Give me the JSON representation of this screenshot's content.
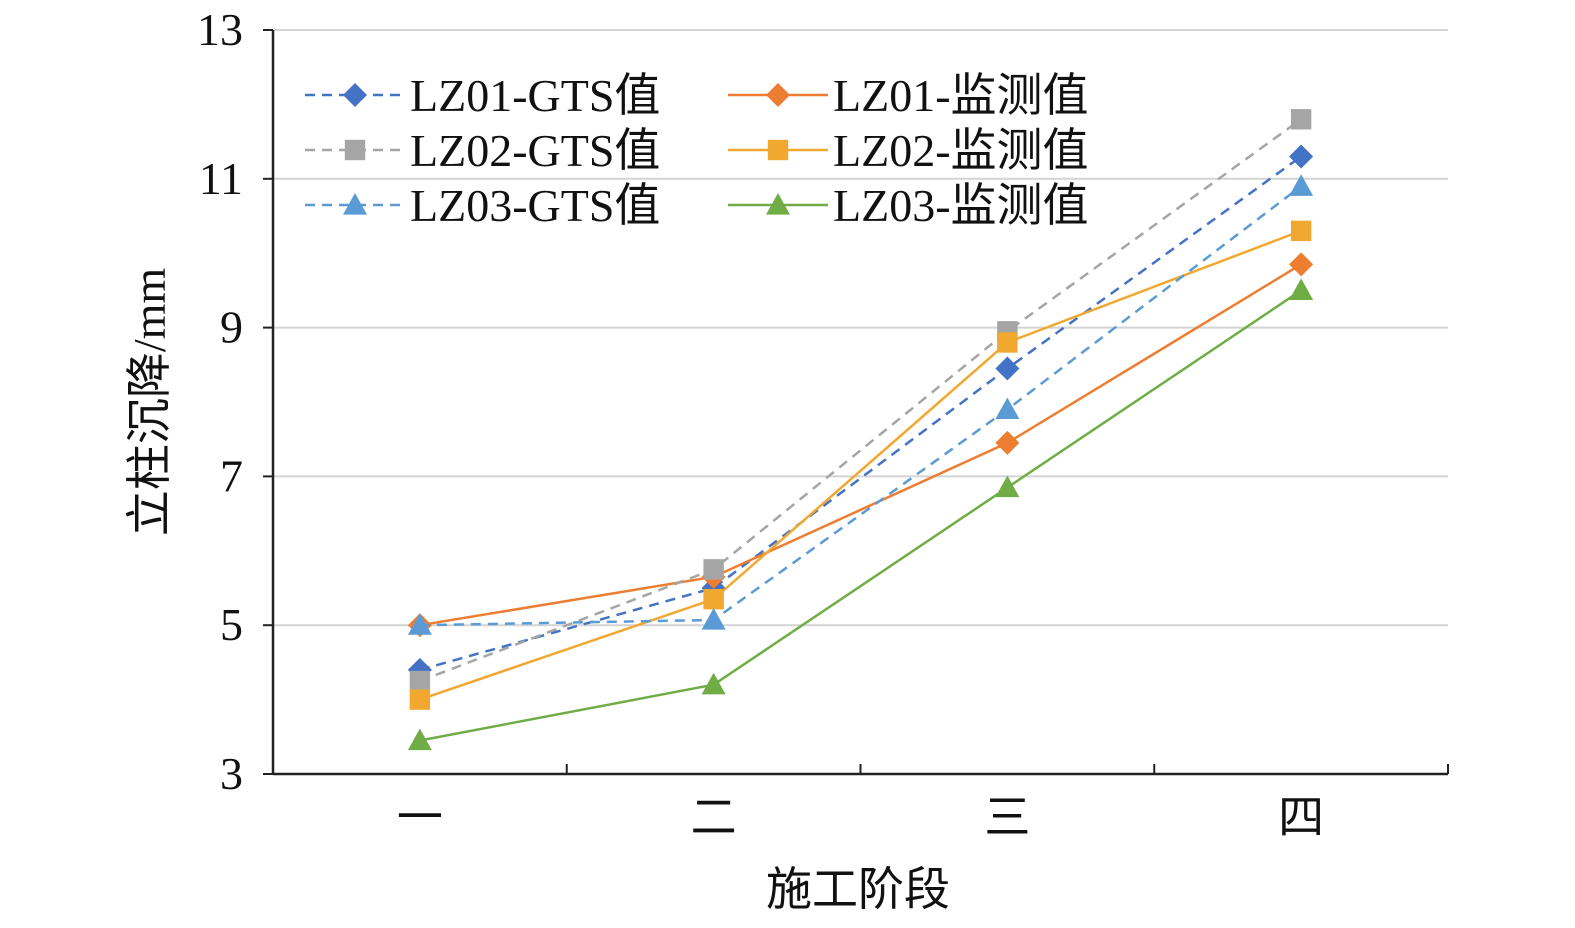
{
  "chart_data": {
    "type": "line",
    "xlabel": "施工阶段",
    "ylabel": "立柱沉降/mm",
    "categories": [
      "一",
      "二",
      "三",
      "四"
    ],
    "ylim": [
      3,
      13
    ],
    "yticks": [
      3,
      5,
      7,
      9,
      11,
      13
    ],
    "grid": "horizontal",
    "legend_position": "top-left",
    "series": [
      {
        "name": "LZ01-GTS值",
        "values": [
          4.4,
          5.5,
          8.45,
          11.3
        ],
        "color": "#4472C4",
        "marker": "diamond",
        "dashed": true
      },
      {
        "name": "LZ01-监测值",
        "values": [
          5.0,
          5.65,
          7.45,
          9.85
        ],
        "color": "#ED7D31",
        "marker": "diamond",
        "dashed": false
      },
      {
        "name": "LZ02-GTS值",
        "values": [
          4.25,
          5.75,
          8.95,
          11.8
        ],
        "color": "#A5A5A5",
        "marker": "square",
        "dashed": true
      },
      {
        "name": "LZ02-监测值",
        "values": [
          4.0,
          5.35,
          8.8,
          10.3
        ],
        "color": "#F0A830",
        "marker": "square",
        "dashed": false
      },
      {
        "name": "LZ03-GTS值",
        "values": [
          5.0,
          5.07,
          7.9,
          10.9
        ],
        "color": "#5B9BD5",
        "marker": "triangle",
        "dashed": true
      },
      {
        "name": "LZ03-监测值",
        "values": [
          3.45,
          4.2,
          6.85,
          9.5
        ],
        "color": "#70AD47",
        "marker": "triangle",
        "dashed": false
      }
    ]
  }
}
